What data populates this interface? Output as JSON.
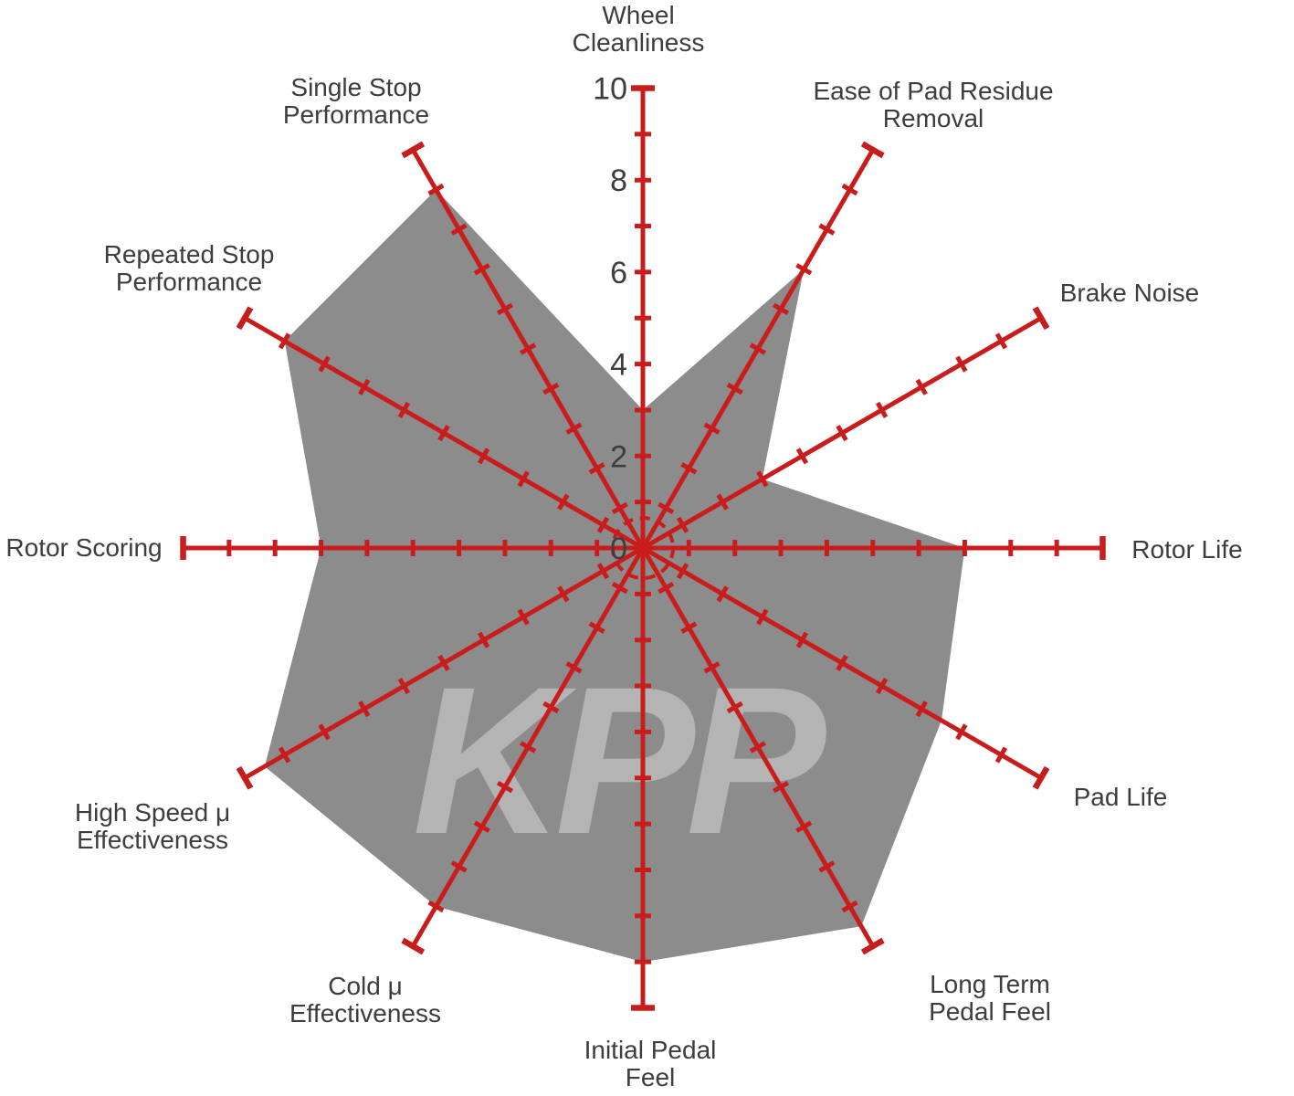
{
  "chart_data": {
    "type": "radar",
    "title": "",
    "watermark": "KPP",
    "scale": {
      "min": 0,
      "max": 10,
      "tick_step": 1,
      "label_step": 2,
      "tick_labels": [
        "0",
        "2",
        "4",
        "6",
        "8",
        "10"
      ]
    },
    "legend": "none",
    "grid": "radial-axes-with-unit-ticks, dashed zero ring at center",
    "axes": [
      {
        "label": "Wheel Cleanliness",
        "label_lines": [
          "Wheel",
          "Cleanliness"
        ],
        "value": 3
      },
      {
        "label": "Ease of Pad Residue Removal",
        "label_lines": [
          "Ease of Pad Residue",
          "Removal"
        ],
        "value": 7
      },
      {
        "label": "Brake Noise",
        "label_lines": [
          "Brake Noise"
        ],
        "value": 3
      },
      {
        "label": "Rotor Life",
        "label_lines": [
          "Rotor Life"
        ],
        "value": 7
      },
      {
        "label": "Pad Life",
        "label_lines": [
          "Pad Life"
        ],
        "value": 7.5
      },
      {
        "label": "Long Term Pedal Feel",
        "label_lines": [
          "Long Term",
          "Pedal Feel"
        ],
        "value": 9.5
      },
      {
        "label": "Initial Pedal Feel",
        "label_lines": [
          "Initial Pedal",
          "Feel"
        ],
        "value": 9
      },
      {
        "label": "Cold μ Effectiveness",
        "label_lines": [
          "Cold μ",
          "Effectiveness"
        ],
        "value": 9
      },
      {
        "label": "High Speed μ Effectiveness",
        "label_lines": [
          "High Speed μ",
          "Effectiveness"
        ],
        "value": 9.5
      },
      {
        "label": "Rotor Scoring",
        "label_lines": [
          "Rotor Scoring"
        ],
        "value": 7
      },
      {
        "label": "Repeated Stop Performance",
        "label_lines": [
          "Repeated Stop",
          "Performance"
        ],
        "value": 9
      },
      {
        "label": "Single Stop Performance",
        "label_lines": [
          "Single Stop",
          "Performance"
        ],
        "value": 9
      }
    ],
    "colors": {
      "axis": "#c91d1d",
      "fill": "#8c8c8c",
      "watermark": "#b4b4b4",
      "text": "#3d3d3d",
      "background": "#ffffff"
    }
  }
}
